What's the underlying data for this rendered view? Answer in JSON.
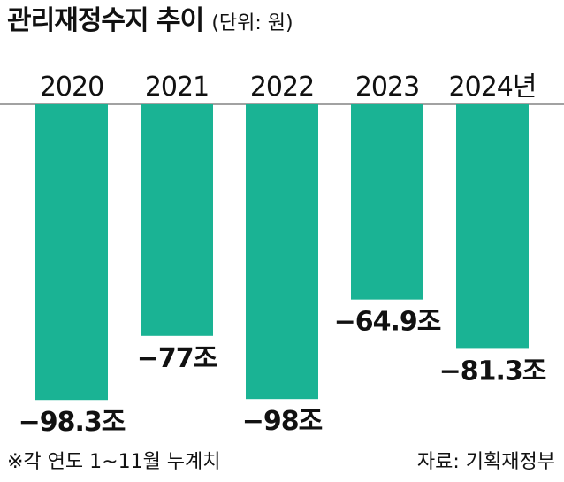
{
  "title": "관리재정수지 추이",
  "unit_label": "(단위: 원)",
  "footnote": "※각 연도 1~11월 누계치",
  "source": "자료: 기획재정부",
  "colors": {
    "bar": "#1ab394",
    "axis": "#444444",
    "text": "#111111"
  },
  "chart_data": {
    "type": "bar",
    "categories": [
      "2020",
      "2021",
      "2022",
      "2023",
      "2024년"
    ],
    "values": [
      -98.3,
      -77,
      -98,
      -64.9,
      -81.3
    ],
    "value_labels": [
      "−98.3조",
      "−77조",
      "−98조",
      "−64.9조",
      "−81.3조"
    ],
    "unit": "조 원",
    "ylim": [
      -100,
      0
    ],
    "x_axis_position": "top",
    "grid": false,
    "legend": "none"
  }
}
